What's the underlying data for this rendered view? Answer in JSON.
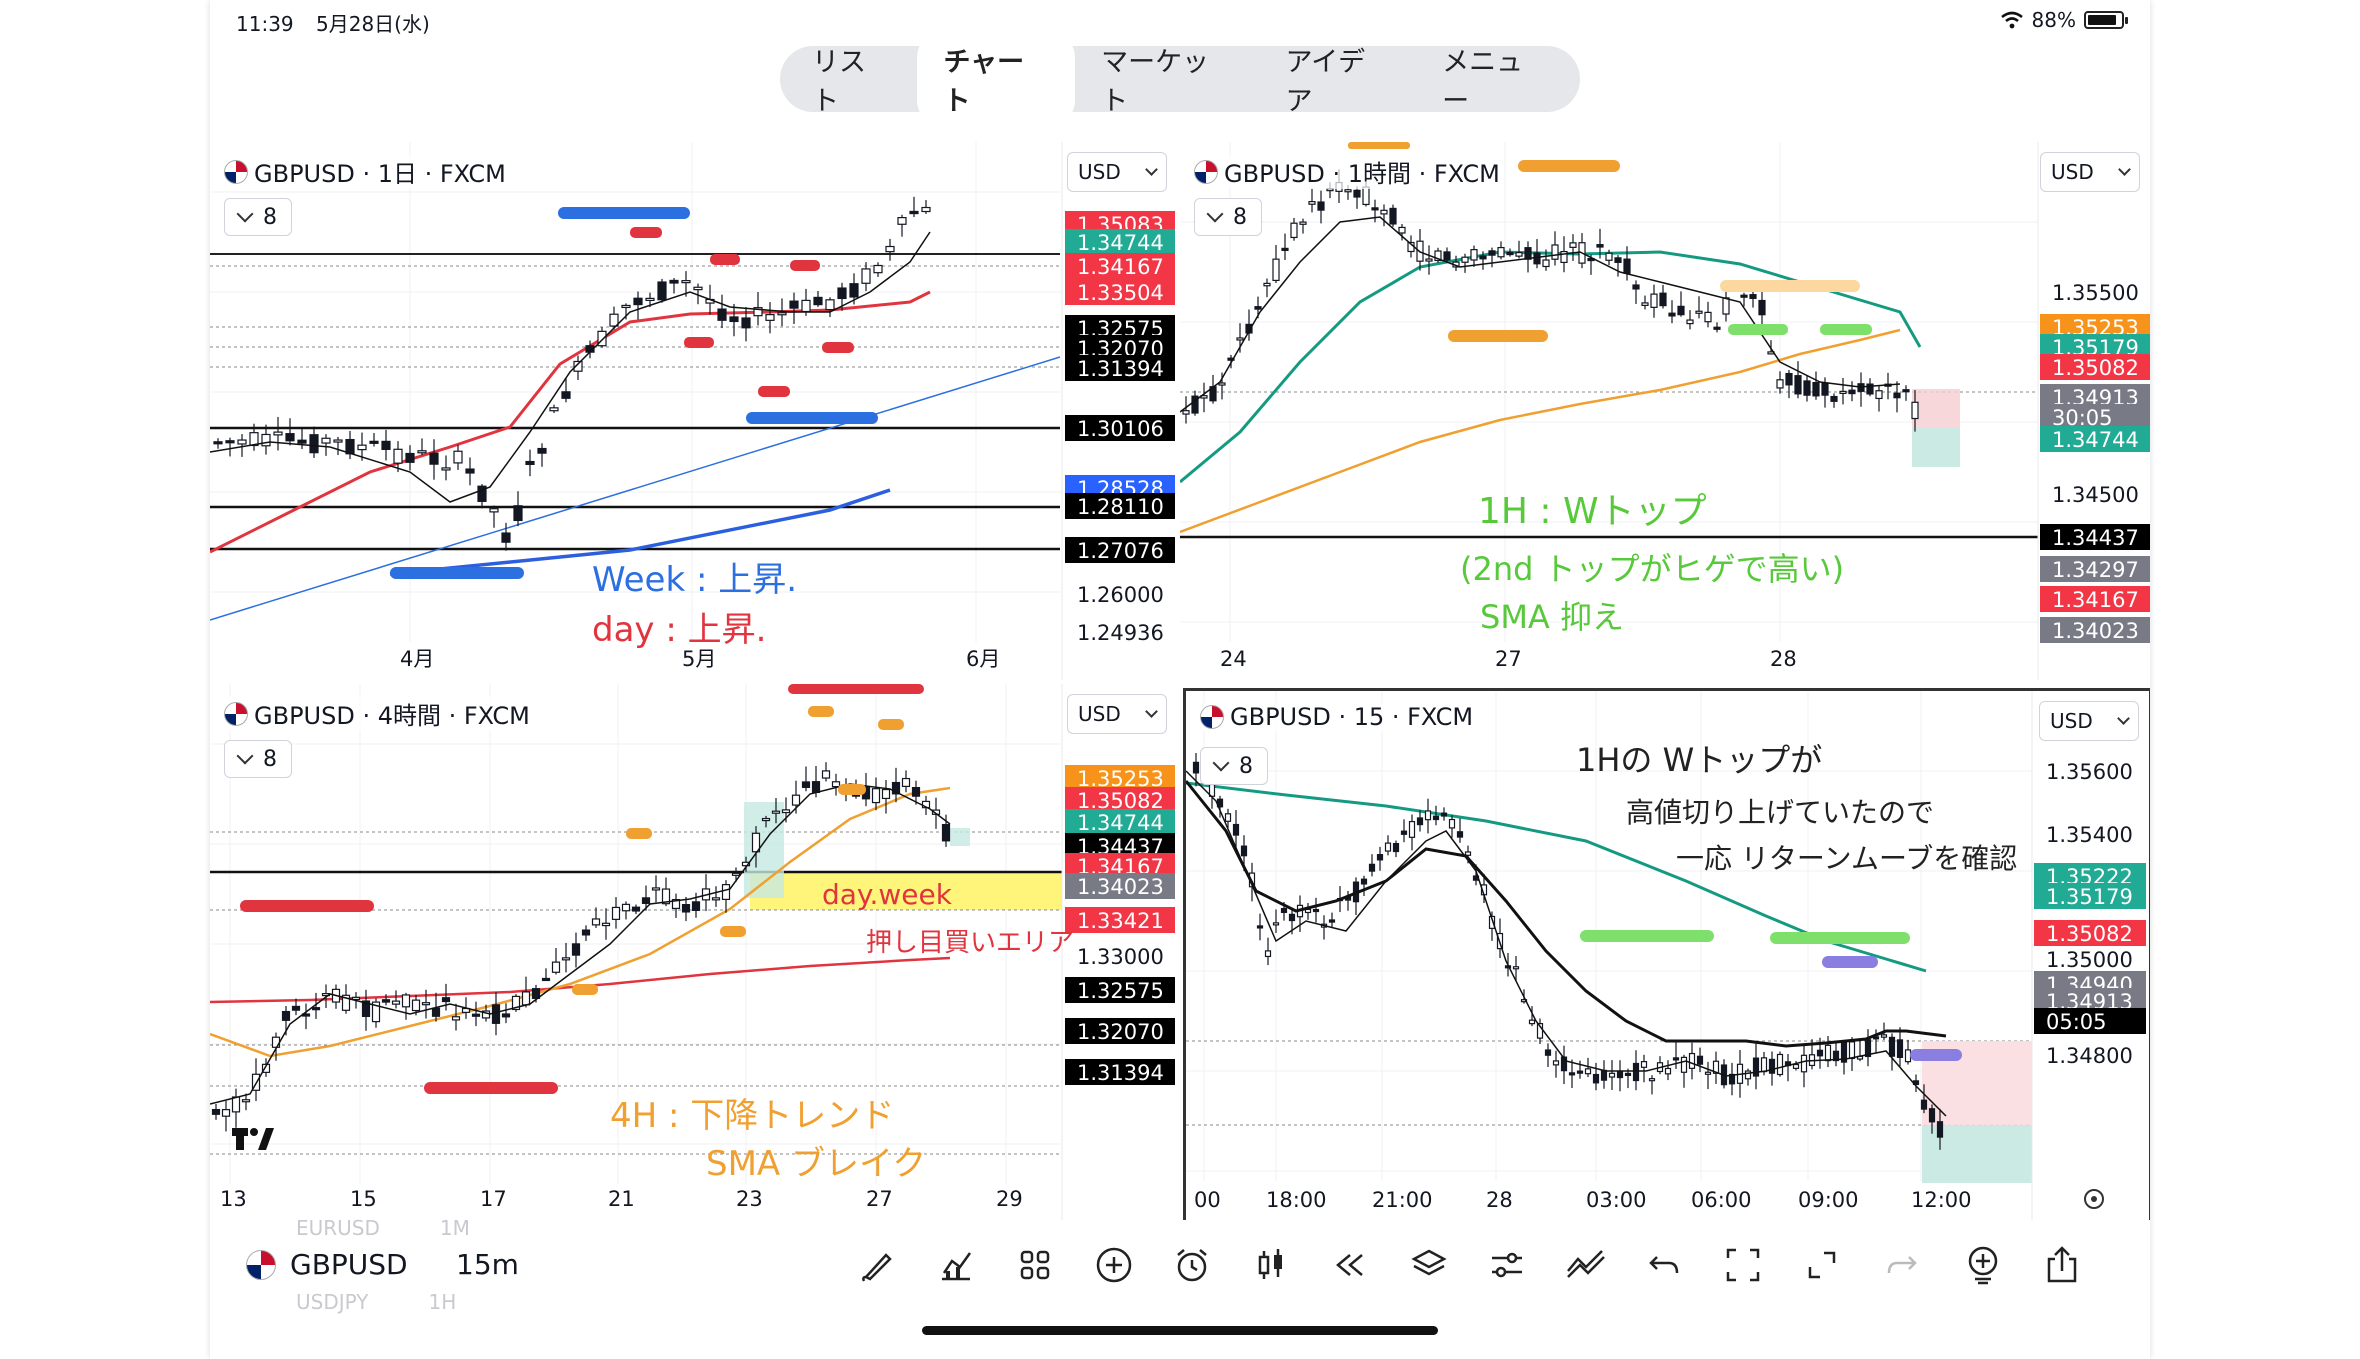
{
  "status_bar": {
    "time": "11:39",
    "date": "5月28日(水)",
    "battery": "88%",
    "battery_level": 0.88
  },
  "nav_tabs": [
    {
      "label": "リスト",
      "active": false
    },
    {
      "label": "チャート",
      "active": true
    },
    {
      "label": "マーケット",
      "active": false
    },
    {
      "label": "アイデア",
      "active": false
    },
    {
      "label": "メニュー",
      "active": false
    }
  ],
  "colors": {
    "up": "#ffffff",
    "down": "#131722",
    "green_tag": "#22ab94",
    "red_tag": "#f23645",
    "black_tag": "#000000",
    "orange_sma": "#f0a030",
    "teal_sma": "#159a82",
    "red_sma": "#e0343f",
    "blue_sma": "#2c5fdd"
  },
  "panels": [
    {
      "symbol": "GBPUSD · 1日 · FXCM",
      "currency": "USD",
      "indicator_count": "8",
      "price_tags": [
        {
          "text": "1.35083",
          "kind": "red"
        },
        {
          "text": "1.34744",
          "kind": "green"
        },
        {
          "text": "1.34167",
          "kind": "red"
        },
        {
          "text": "1.33504",
          "kind": "red"
        },
        {
          "text": "1.32575",
          "kind": "black"
        },
        {
          "text": "1.32070",
          "kind": "black"
        },
        {
          "text": "1.31394",
          "kind": "black"
        },
        {
          "text": "1.30106",
          "kind": "black"
        },
        {
          "text": "1.28528",
          "kind": "blue"
        },
        {
          "text": "1.28110",
          "kind": "black"
        },
        {
          "text": "1.27076",
          "kind": "black"
        },
        {
          "text": "1.26000",
          "kind": "plain"
        },
        {
          "text": "1.24936",
          "kind": "plain"
        }
      ],
      "time_labels": [
        "4月",
        "5月",
        "6月"
      ],
      "annotations": [
        {
          "text": "Week : 上昇.",
          "color": "#2c6fe0"
        },
        {
          "text": "day : 上昇.",
          "color": "#e0343f"
        }
      ]
    },
    {
      "symbol": "GBPUSD · 1時間 · FXCM",
      "currency": "USD",
      "indicator_count": "8",
      "price_tags": [
        {
          "text": "1.35500",
          "kind": "plain"
        },
        {
          "text": "1.35253",
          "kind": "orange"
        },
        {
          "text": "1.35179",
          "kind": "green"
        },
        {
          "text": "1.35082",
          "kind": "red"
        },
        {
          "text": "1.34913",
          "kind": "gray"
        },
        {
          "text": "30:05",
          "kind": "gray"
        },
        {
          "text": "1.34744",
          "kind": "green"
        },
        {
          "text": "1.34500",
          "kind": "plain"
        },
        {
          "text": "1.34437",
          "kind": "black"
        },
        {
          "text": "1.34297",
          "kind": "gray"
        },
        {
          "text": "1.34167",
          "kind": "red"
        },
        {
          "text": "1.34023",
          "kind": "gray"
        }
      ],
      "time_labels": [
        "24",
        "27",
        "28"
      ],
      "annotations": [
        {
          "text": "1H : Wトップ",
          "color": "#58c93b"
        },
        {
          "text": "(2nd トップがヒゲで高い)",
          "color": "#58c93b"
        },
        {
          "text": "SMA 抑え",
          "color": "#58c93b"
        }
      ]
    },
    {
      "symbol": "GBPUSD · 4時間 · FXCM",
      "currency": "USD",
      "indicator_count": "8",
      "price_tags": [
        {
          "text": "1.35253",
          "kind": "orange"
        },
        {
          "text": "1.35082",
          "kind": "red"
        },
        {
          "text": "1.34744",
          "kind": "green"
        },
        {
          "text": "1.34437",
          "kind": "black"
        },
        {
          "text": "1.34167",
          "kind": "red"
        },
        {
          "text": "1.34023",
          "kind": "gray"
        },
        {
          "text": "1.33421",
          "kind": "red"
        },
        {
          "text": "1.33000",
          "kind": "plain"
        },
        {
          "text": "1.32575",
          "kind": "black"
        },
        {
          "text": "1.32070",
          "kind": "black"
        },
        {
          "text": "1.31394",
          "kind": "black"
        }
      ],
      "time_labels": [
        "13",
        "15",
        "17",
        "21",
        "23",
        "27",
        "29"
      ],
      "annotations": [
        {
          "text": "day.week",
          "color": "#e0343f"
        },
        {
          "text": "押し目買いエリア",
          "color": "#e0343f"
        },
        {
          "text": "4H : 下降トレンド",
          "color": "#f0a030"
        },
        {
          "text": "SMA ブレイク",
          "color": "#f0a030"
        }
      ]
    },
    {
      "symbol": "GBPUSD · 15 · FXCM",
      "currency": "USD",
      "indicator_count": "8",
      "price_tags": [
        {
          "text": "1.35600",
          "kind": "plain"
        },
        {
          "text": "1.35400",
          "kind": "plain"
        },
        {
          "text": "1.35222",
          "kind": "green"
        },
        {
          "text": "1.35179",
          "kind": "green"
        },
        {
          "text": "1.35082",
          "kind": "red"
        },
        {
          "text": "1.35000",
          "kind": "plain"
        },
        {
          "text": "1.34940",
          "kind": "gray"
        },
        {
          "text": "1.34913",
          "kind": "gray"
        },
        {
          "text": "05:05",
          "kind": "black"
        },
        {
          "text": "1.34800",
          "kind": "plain"
        }
      ],
      "time_labels": [
        "00",
        "18:00",
        "21:00",
        "28",
        "03:00",
        "06:00",
        "09:00",
        "12:00"
      ],
      "annotations": [
        {
          "text": "1Hの Wトップが",
          "color": "#222222"
        },
        {
          "text": "高値切り上げていたので",
          "color": "#222222"
        },
        {
          "text": "一応 リターンムーブを確認",
          "color": "#222222"
        }
      ]
    }
  ],
  "bottom_bar": {
    "symbol": "GBPUSD",
    "timeframe": "15m",
    "ghost_above_symbol": "EURUSD",
    "ghost_above_tf": "1M",
    "ghost_below_symbol": "USDJPY",
    "ghost_below_tf": "1H"
  },
  "toolbar_icons": [
    "brush-icon",
    "indicator-icon",
    "grid-layout-icon",
    "add-icon",
    "alarm-icon",
    "candle-type-icon",
    "replay-icon",
    "layers-icon",
    "settings-sliders-icon",
    "drawing-tools-icon",
    "undo-icon",
    "fullscreen-icon",
    "expand-icon",
    "redo-icon",
    "add-alert-icon",
    "share-icon"
  ]
}
